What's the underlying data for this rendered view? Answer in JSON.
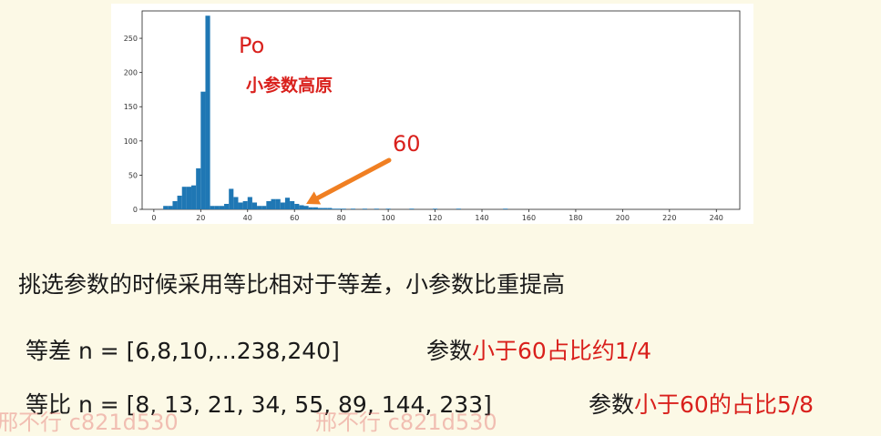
{
  "chart_data": {
    "type": "bar",
    "x": [
      5,
      7,
      9,
      11,
      13,
      15,
      17,
      19,
      21,
      23,
      25,
      27,
      29,
      31,
      33,
      35,
      37,
      39,
      41,
      43,
      45,
      47,
      49,
      51,
      53,
      55,
      57,
      59,
      61,
      63,
      65,
      67,
      69,
      71,
      73,
      75,
      77,
      79,
      81,
      85,
      90,
      95,
      100,
      110,
      120,
      130,
      150
    ],
    "values": [
      5,
      5,
      12,
      20,
      33,
      33,
      35,
      60,
      172,
      283,
      5,
      5,
      5,
      8,
      30,
      18,
      10,
      12,
      18,
      10,
      5,
      5,
      12,
      15,
      15,
      10,
      17,
      12,
      8,
      6,
      5,
      3,
      3,
      2,
      2,
      2,
      1,
      1,
      1,
      1,
      1,
      1,
      1,
      1,
      1,
      1,
      1
    ],
    "xlim": [
      -5,
      250
    ],
    "ylim": [
      0,
      290
    ],
    "xticks": [
      "0",
      "20",
      "40",
      "60",
      "80",
      "100",
      "120",
      "140",
      "160",
      "180",
      "200",
      "220",
      "240"
    ],
    "yticks": [
      "0",
      "50",
      "100",
      "150",
      "200",
      "250"
    ],
    "color": "#1f77b4",
    "annotations": {
      "title": "Po",
      "subtitle": "小参数高原",
      "arrow_label": "60",
      "arrow_color": "#f07f22"
    }
  },
  "text": {
    "line1": "挑选参数的时候采用等比相对于等差，小参数比重提高",
    "line2_prefix": "等差  n = [6,8,10,...238,240]",
    "line2_mid": "参数",
    "line2_red": "小于60占比约1/4",
    "line3_prefix": "等比  n = [8, 13, 21, 34, 55, 89, 144, 233]",
    "line3_mid": "参数",
    "line3_red": "小于60的占比5/8"
  },
  "watermark": "邢不行 c821d530"
}
